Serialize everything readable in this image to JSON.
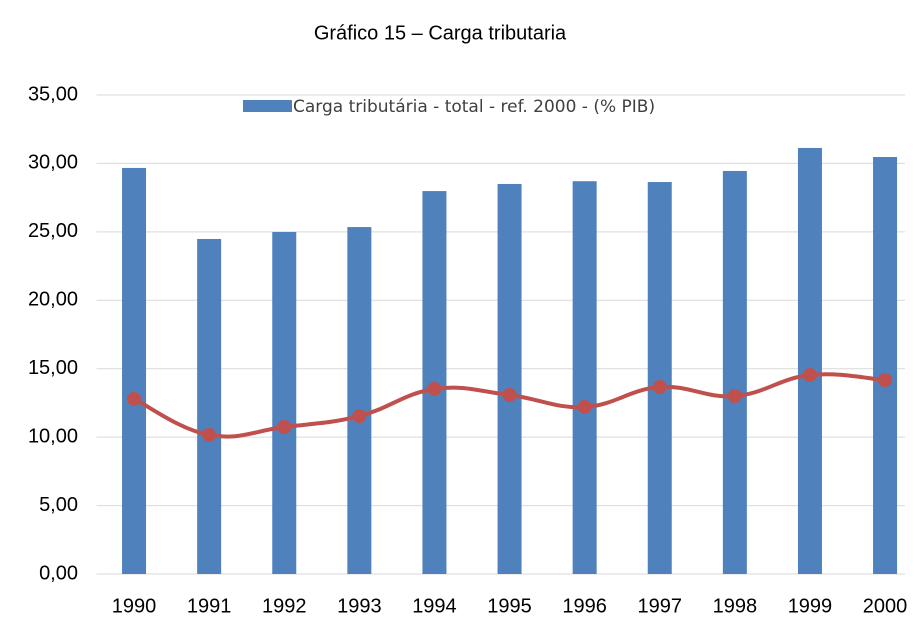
{
  "chart_data": {
    "type": "bar-line",
    "title": "Gráfico 15 – Carga tributaria",
    "categories": [
      "1990",
      "1991",
      "1992",
      "1993",
      "1994",
      "1995",
      "1996",
      "1997",
      "1998",
      "1999",
      "2000"
    ],
    "series": [
      {
        "name": "Carga tributária - total - ref. 2000 - (% PIB)",
        "type": "bar",
        "color": "#4f81bd",
        "values": [
          29.67,
          24.48,
          24.99,
          25.35,
          27.98,
          28.5,
          28.7,
          28.64,
          29.45,
          31.13,
          30.47
        ]
      },
      {
        "type": "line",
        "color": "#c0504d",
        "values": [
          12.79,
          10.16,
          10.74,
          11.54,
          13.52,
          13.08,
          12.2,
          13.66,
          13.0,
          14.54,
          14.17
        ]
      }
    ],
    "ylim": [
      0,
      35
    ],
    "yticks": [
      {
        "value": 0,
        "label": "0,00"
      },
      {
        "value": 5,
        "label": "5,00"
      },
      {
        "value": 10,
        "label": "10,00"
      },
      {
        "value": 15,
        "label": "15,00"
      },
      {
        "value": 20,
        "label": "20,00"
      },
      {
        "value": 25,
        "label": "25,00"
      },
      {
        "value": 30,
        "label": "30,00"
      },
      {
        "value": 35,
        "label": "35,00"
      }
    ],
    "grid": true
  }
}
